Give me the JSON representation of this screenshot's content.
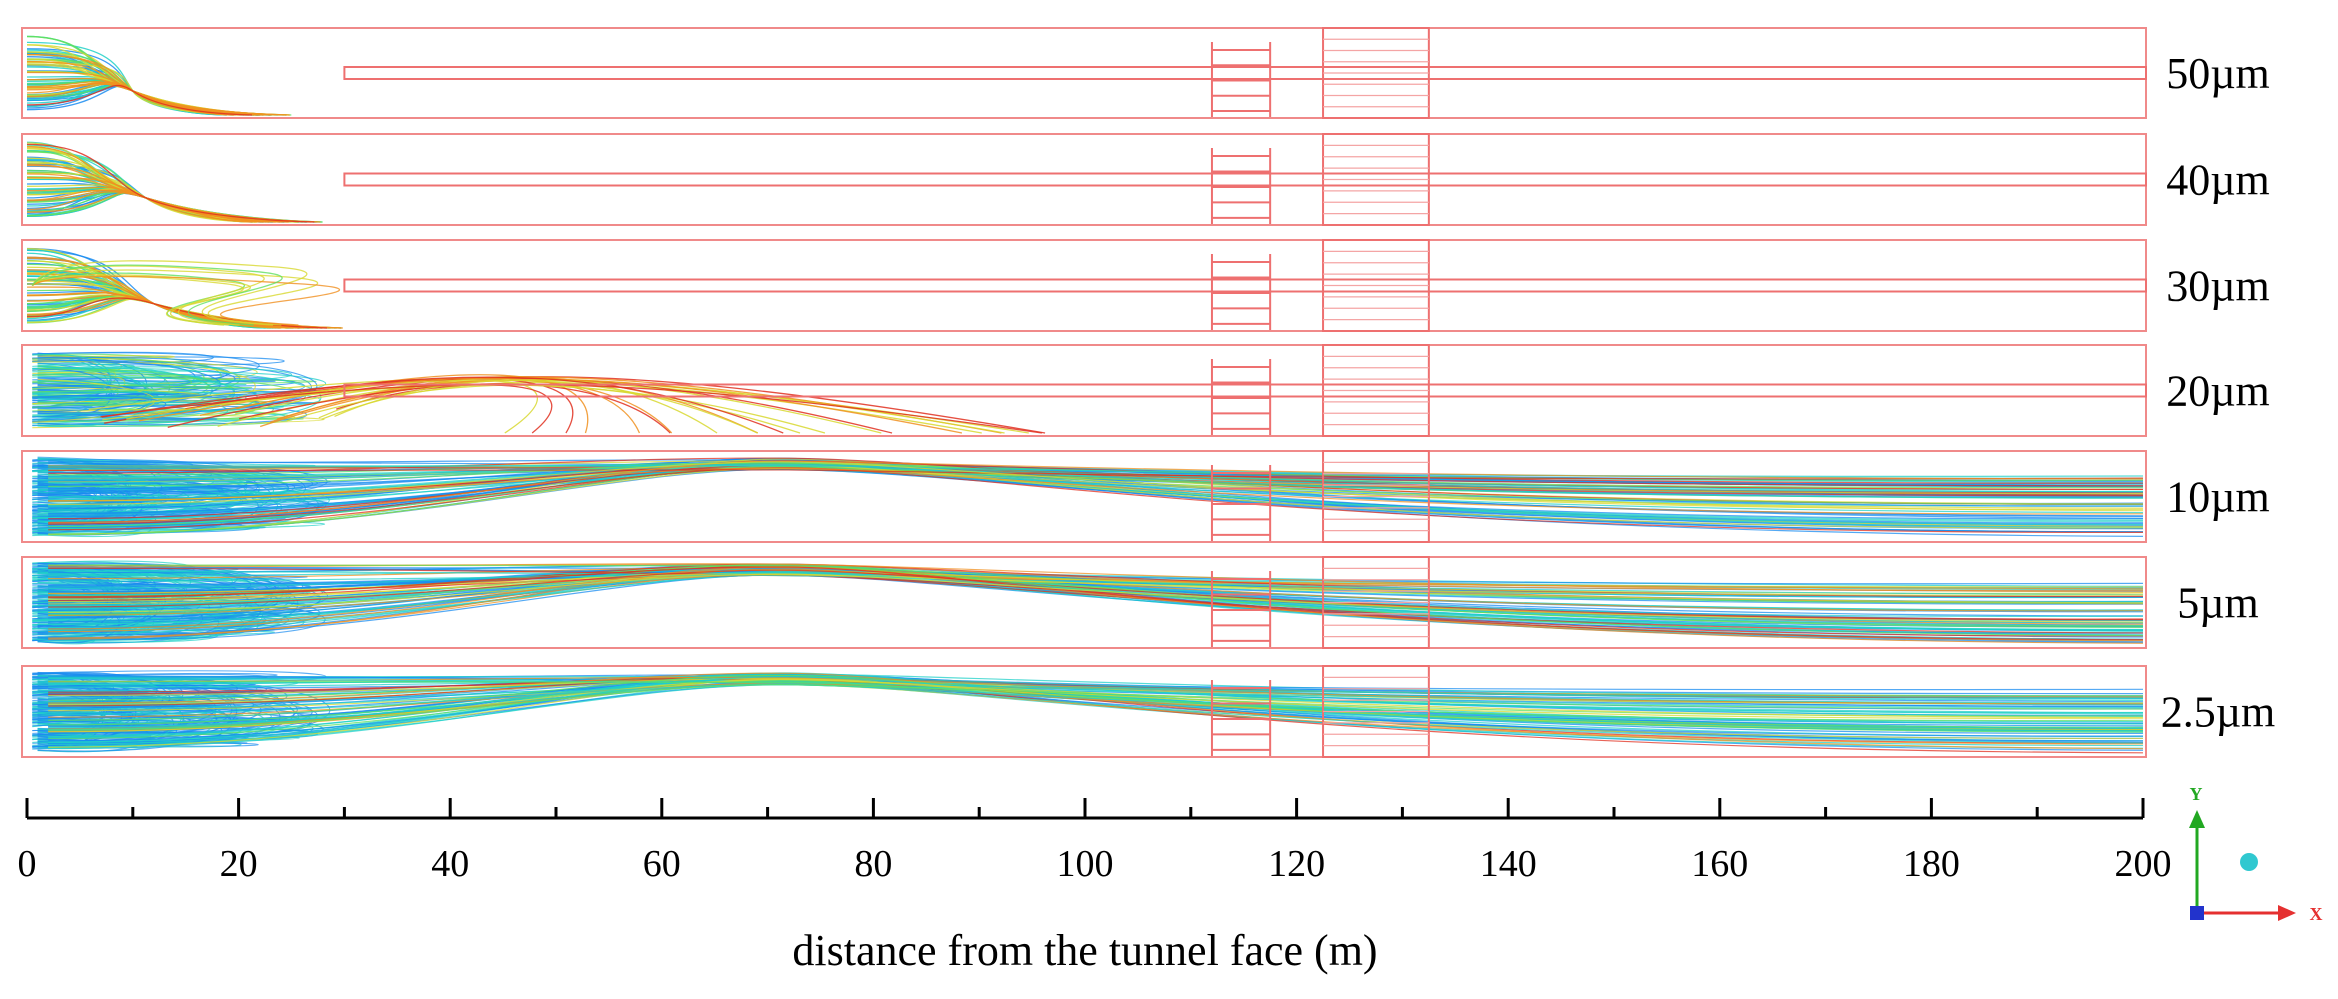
{
  "panels": [
    {
      "label": "50µm",
      "reach_m": 25,
      "behavior": "settle"
    },
    {
      "label": "40µm",
      "reach_m": 28,
      "behavior": "settle"
    },
    {
      "label": "30µm",
      "reach_m": 30,
      "behavior": "settle-loops"
    },
    {
      "label": "20µm",
      "reach_m": 100,
      "behavior": "recirculate"
    },
    {
      "label": "10µm",
      "reach_m": 200,
      "behavior": "suspend"
    },
    {
      "label": "5µm",
      "reach_m": 200,
      "behavior": "suspend"
    },
    {
      "label": "2.5µm",
      "reach_m": 200,
      "behavior": "suspend"
    }
  ],
  "axis": {
    "title": "distance from the tunnel face (m)",
    "min": 0,
    "max": 200,
    "major_step": 20,
    "minor_step": 10,
    "ticks": [
      "0",
      "20",
      "40",
      "60",
      "80",
      "100",
      "120",
      "140",
      "160",
      "180",
      "200"
    ]
  },
  "structures": {
    "duct_start_m": 30,
    "ladder_from_m": 112,
    "ladder_to_m": 117.5,
    "block_from_m": 122.5,
    "block_to_m": 132.5
  },
  "triad": {
    "x_label": "X",
    "y_label": "Y"
  },
  "colors": {
    "frame": "#f08a8a",
    "structure": "#ee7070",
    "axis": "#000000",
    "triad_x": "#e53030",
    "triad_y": "#22a822",
    "triad_z": "#2233cc",
    "sphere": "#30c8d0"
  }
}
